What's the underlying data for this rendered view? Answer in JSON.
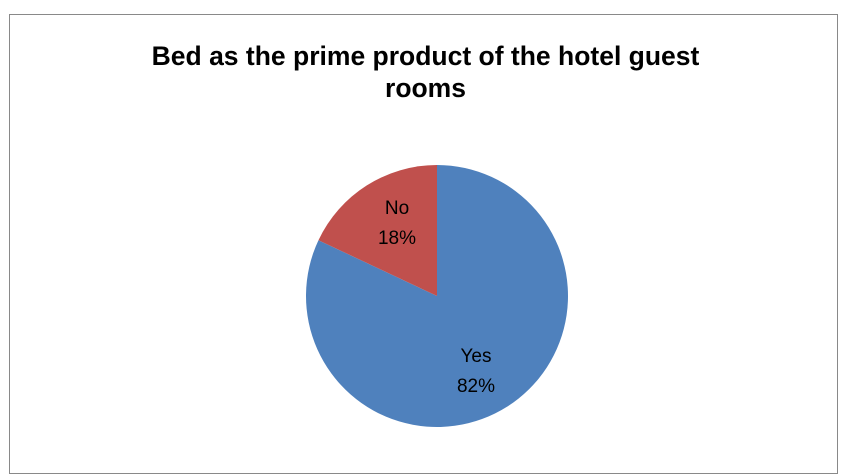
{
  "chart_data": {
    "type": "pie",
    "title_lines": [
      "Bed as the prime product of the hotel guest",
      "rooms"
    ],
    "categories": [
      "Yes",
      "No"
    ],
    "values": [
      82,
      18
    ],
    "data_labels": [
      "82%",
      "18%"
    ],
    "colors": [
      "#4f81bd",
      "#c0504d"
    ],
    "start": "top, clockwise",
    "legend": "none"
  }
}
